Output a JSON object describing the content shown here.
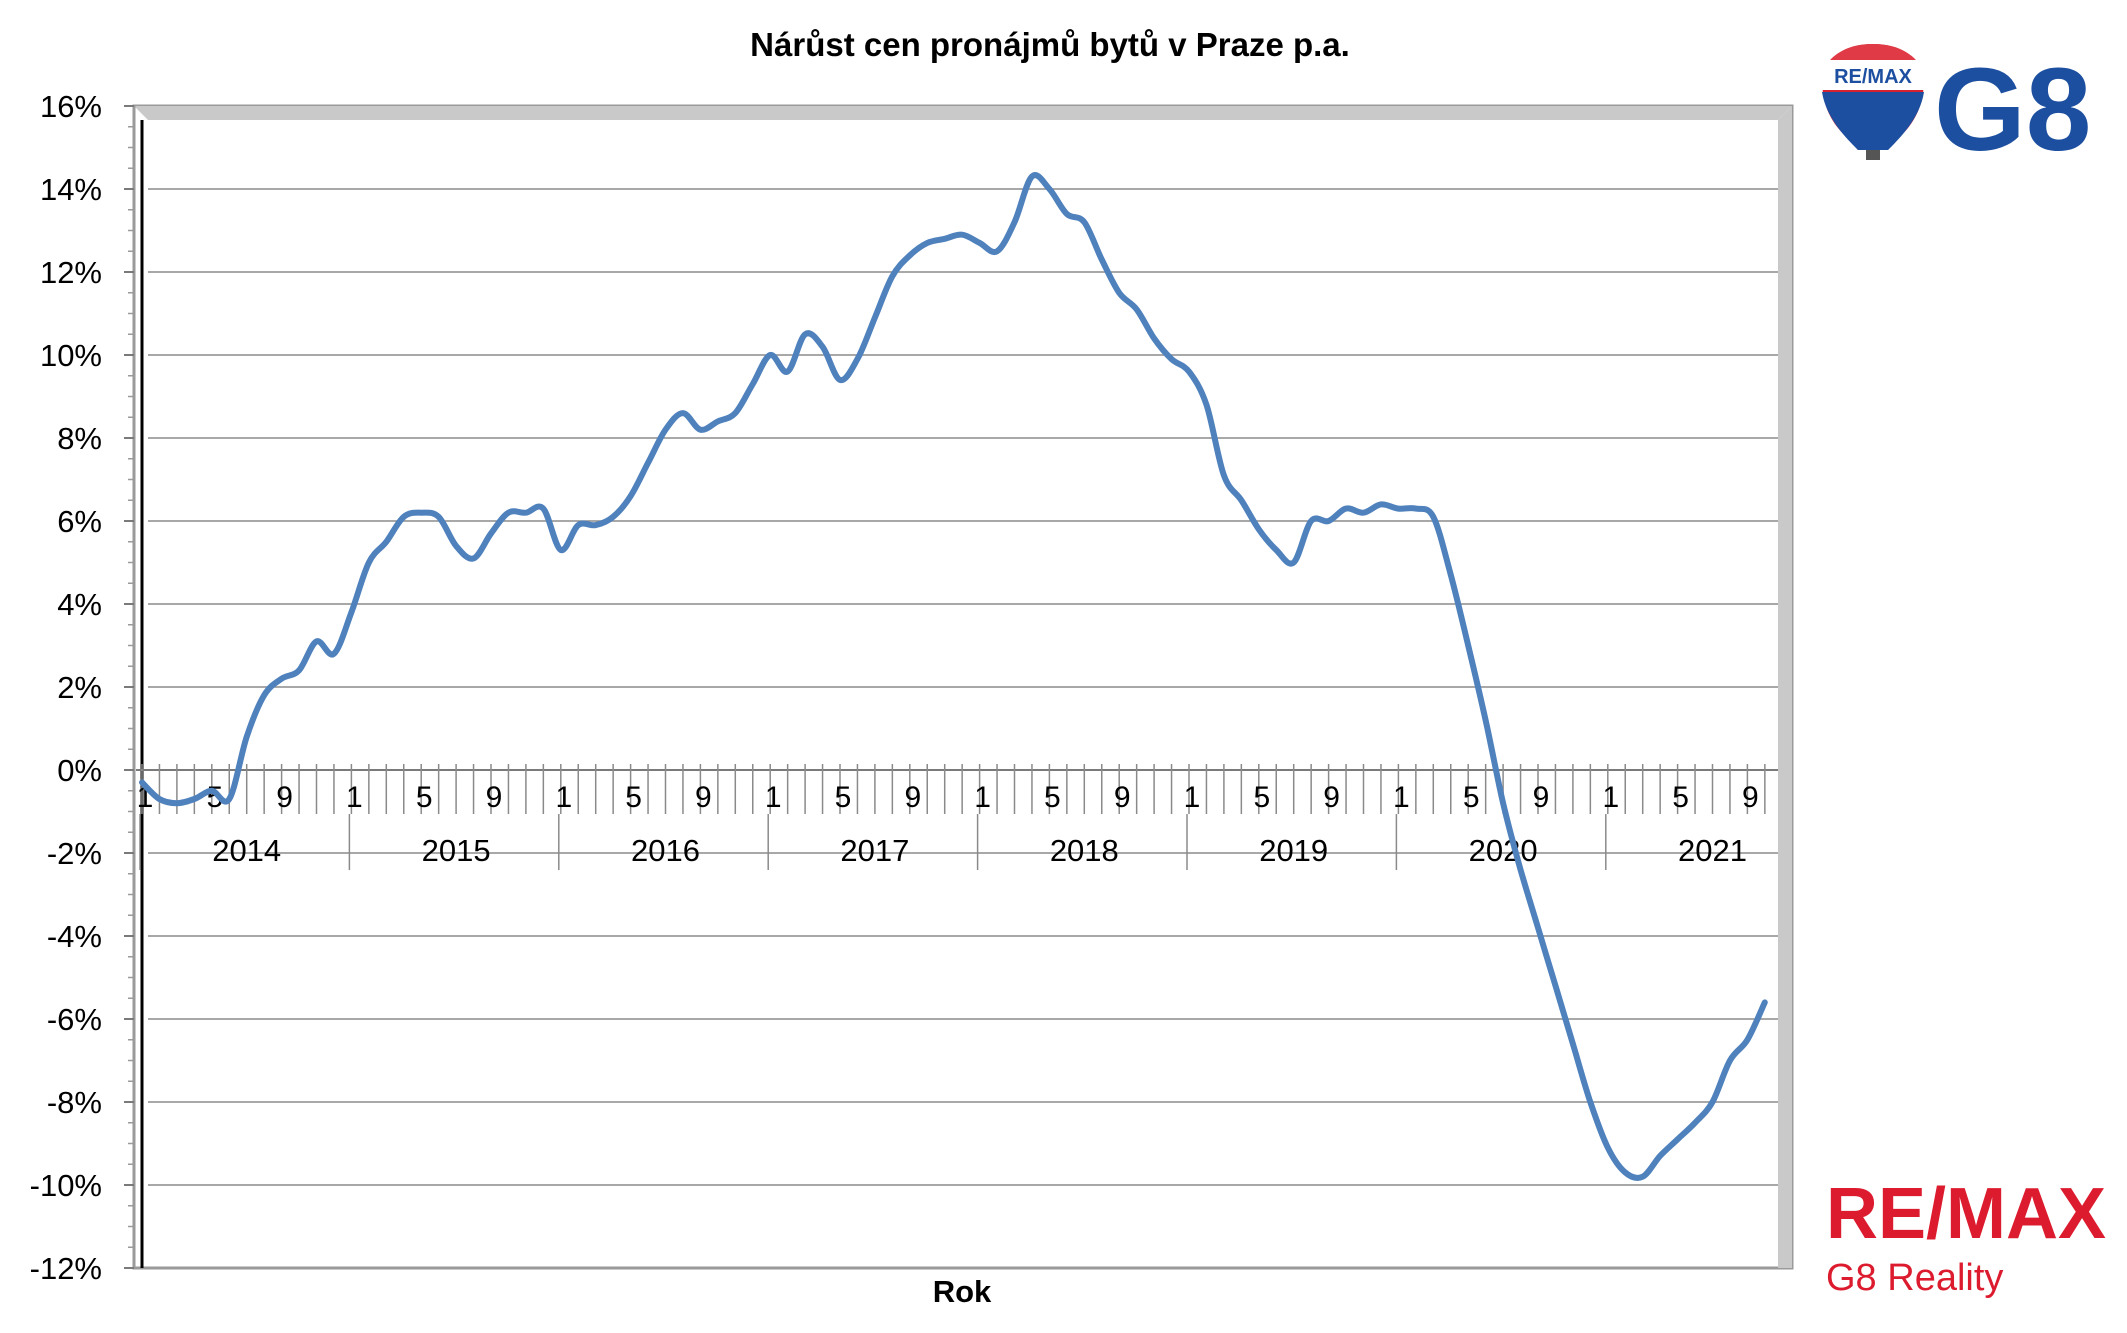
{
  "chart_data": {
    "type": "line",
    "title": "Nárůst cen pronájmů bytů v Praze p.a.",
    "xlabel": "Rok",
    "ylabel": "",
    "ylim": [
      -0.12,
      0.16
    ],
    "y_ticks": [
      {
        "value": 0.16,
        "label": "16%"
      },
      {
        "value": 0.14,
        "label": "14%"
      },
      {
        "value": 0.12,
        "label": "12%"
      },
      {
        "value": 0.1,
        "label": "10%"
      },
      {
        "value": 0.08,
        "label": "8%"
      },
      {
        "value": 0.06,
        "label": "6%"
      },
      {
        "value": 0.04,
        "label": "4%"
      },
      {
        "value": 0.02,
        "label": "2%"
      },
      {
        "value": 0.0,
        "label": "0%"
      },
      {
        "value": -0.02,
        "label": "-2%"
      },
      {
        "value": -0.04,
        "label": "-4%"
      },
      {
        "value": -0.06,
        "label": "-6%"
      },
      {
        "value": -0.08,
        "label": "-8%"
      },
      {
        "value": -0.1,
        "label": "-10%"
      },
      {
        "value": -0.12,
        "label": "-12%"
      }
    ],
    "grid": true,
    "legend": "none",
    "years": [
      "2014",
      "2015",
      "2016",
      "2017",
      "2018",
      "2019",
      "2020",
      "2021"
    ],
    "month_labels": [
      "1",
      "5",
      "9"
    ],
    "series": [
      {
        "color": "#4f81bd",
        "values": [
          -0.003,
          -0.007,
          -0.008,
          -0.007,
          -0.005,
          -0.007,
          0.008,
          0.018,
          0.022,
          0.024,
          0.031,
          0.028,
          0.038,
          0.05,
          0.055,
          0.061,
          0.062,
          0.061,
          0.054,
          0.051,
          0.057,
          0.062,
          0.062,
          0.063,
          0.053,
          0.059,
          0.059,
          0.061,
          0.066,
          0.074,
          0.082,
          0.086,
          0.082,
          0.084,
          0.086,
          0.093,
          0.1,
          0.096,
          0.105,
          0.102,
          0.094,
          0.099,
          0.109,
          0.119,
          0.124,
          0.127,
          0.128,
          0.129,
          0.127,
          0.125,
          0.132,
          0.143,
          0.14,
          0.134,
          0.132,
          0.123,
          0.115,
          0.111,
          0.104,
          0.099,
          0.096,
          0.088,
          0.071,
          0.065,
          0.058,
          0.053,
          0.05,
          0.06,
          0.06,
          0.063,
          0.062,
          0.064,
          0.063,
          0.063,
          0.061,
          0.047,
          0.03,
          0.012,
          -0.008,
          -0.024,
          -0.038,
          -0.052,
          -0.066,
          -0.08,
          -0.091,
          -0.097,
          -0.098,
          -0.093,
          -0.089,
          -0.085,
          -0.08,
          -0.07,
          -0.065,
          -0.056
        ]
      }
    ]
  },
  "branding": {
    "balloon_label": "RE/MAX",
    "logo_g8": "G8",
    "remax_text": "RE/MAX",
    "reality_text": "G8 Reality"
  }
}
